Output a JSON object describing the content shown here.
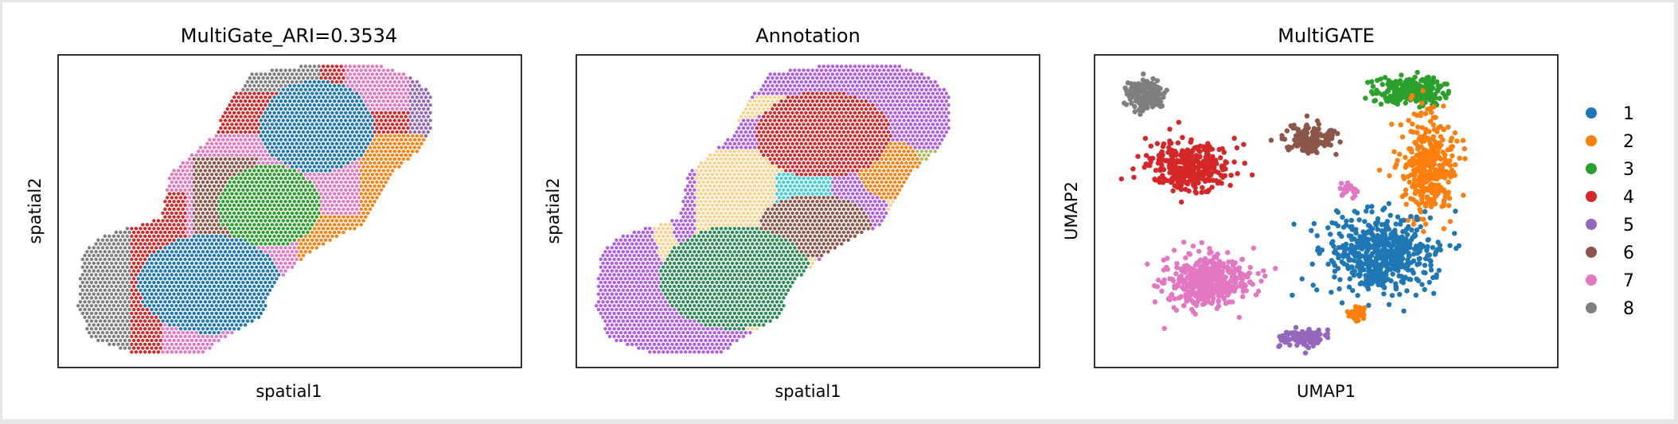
{
  "chart_data": [
    {
      "type": "scatter",
      "title": "MultiGate_ARI=0.3534",
      "xlabel": "spatial1",
      "ylabel": "spatial2",
      "ticks": "hidden",
      "grid": false,
      "description_of_marks": "hexagonal spatial spot grid colored by predicted cluster 1-8",
      "cluster_regions": [
        {
          "cluster": "8",
          "location": "upper-left edge and lower-left edge"
        },
        {
          "cluster": "4",
          "location": "upper band and left side"
        },
        {
          "cluster": "7",
          "location": "upper-left, upper-right, bottom"
        },
        {
          "cluster": "1",
          "location": "upper-center and lower-center blobs"
        },
        {
          "cluster": "6",
          "location": "center band"
        },
        {
          "cluster": "3",
          "location": "center"
        },
        {
          "cluster": "2",
          "location": "right side and lower-right"
        },
        {
          "cluster": "5",
          "location": "right edge and bottom"
        }
      ]
    },
    {
      "type": "scatter",
      "title": "Annotation",
      "xlabel": "spatial1",
      "ylabel": "spatial2",
      "ticks": "hidden",
      "grid": false,
      "description_of_marks": "same spatial spot grid colored by manual annotation categories"
    },
    {
      "type": "scatter",
      "title": "MultiGATE",
      "xlabel": "UMAP1",
      "ylabel": "UMAP2",
      "ticks": "hidden",
      "grid": false,
      "legend_position": "right",
      "series": [
        {
          "name": "1",
          "color": "#1f77b4",
          "location": "lower-right large cluster"
        },
        {
          "name": "2",
          "color": "#ff7f0e",
          "location": "right side, small group lower-center"
        },
        {
          "name": "3",
          "color": "#2ca02c",
          "location": "top-right"
        },
        {
          "name": "4",
          "color": "#d62728",
          "location": "upper-left"
        },
        {
          "name": "5",
          "color": "#9467bd",
          "location": "bottom-center"
        },
        {
          "name": "6",
          "color": "#8c564b",
          "location": "top-center"
        },
        {
          "name": "7",
          "color": "#e377c2",
          "location": "lower-left arc"
        },
        {
          "name": "8",
          "color": "#7f7f7f",
          "location": "top-left corner"
        }
      ]
    }
  ],
  "legend": {
    "items": [
      {
        "label": "1",
        "color": "#1f77b4"
      },
      {
        "label": "2",
        "color": "#ff7f0e"
      },
      {
        "label": "3",
        "color": "#2ca02c"
      },
      {
        "label": "4",
        "color": "#d62728"
      },
      {
        "label": "5",
        "color": "#9467bd"
      },
      {
        "label": "6",
        "color": "#8c564b"
      },
      {
        "label": "7",
        "color": "#e377c2"
      },
      {
        "label": "8",
        "color": "#7f7f7f"
      }
    ]
  },
  "annotation_colors": {
    "L1": "#b15ce8",
    "L2_3": "#fbd38f",
    "L4": "#d62728",
    "L5": "#8c564b",
    "L6": "#2e8b57",
    "WM": "#1f77b4",
    "cyan": "#3fd0dc",
    "olive": "#adba5a",
    "orange": "#ff7f0e",
    "lightblue": "#c6d8f0"
  }
}
